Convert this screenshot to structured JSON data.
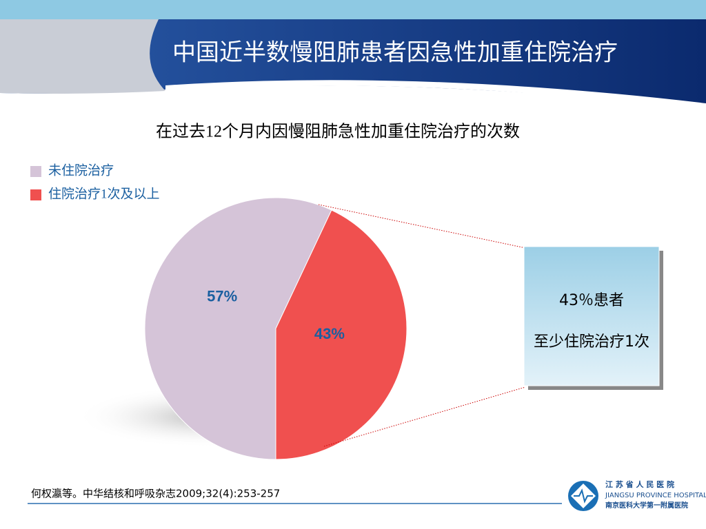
{
  "header": {
    "title": "中国近半数慢阻肺患者因急性加重住院治疗"
  },
  "chart_data": {
    "type": "pie",
    "title": "在过去12个月内因慢阻肺急性加重住院治疗的次数",
    "categories": [
      "未住院治疗",
      "住院治疗1次及以上"
    ],
    "values": [
      57,
      43
    ],
    "value_labels": [
      "57%",
      "43%"
    ],
    "colors": [
      "#d5c4d8",
      "#f0504f"
    ],
    "legend": "top-left"
  },
  "callout": [
    "43％患者",
    "至少住院治疗1次"
  ],
  "citation": "何权瀛等。中华结核和呼吸杂志2009;32(4):253-257",
  "logo": {
    "cn": "江 苏 省 人 民 医 院",
    "en": "JIANGSU PROVINCE HOSPITAL",
    "sub": "南京医科大学第一附属医院"
  }
}
